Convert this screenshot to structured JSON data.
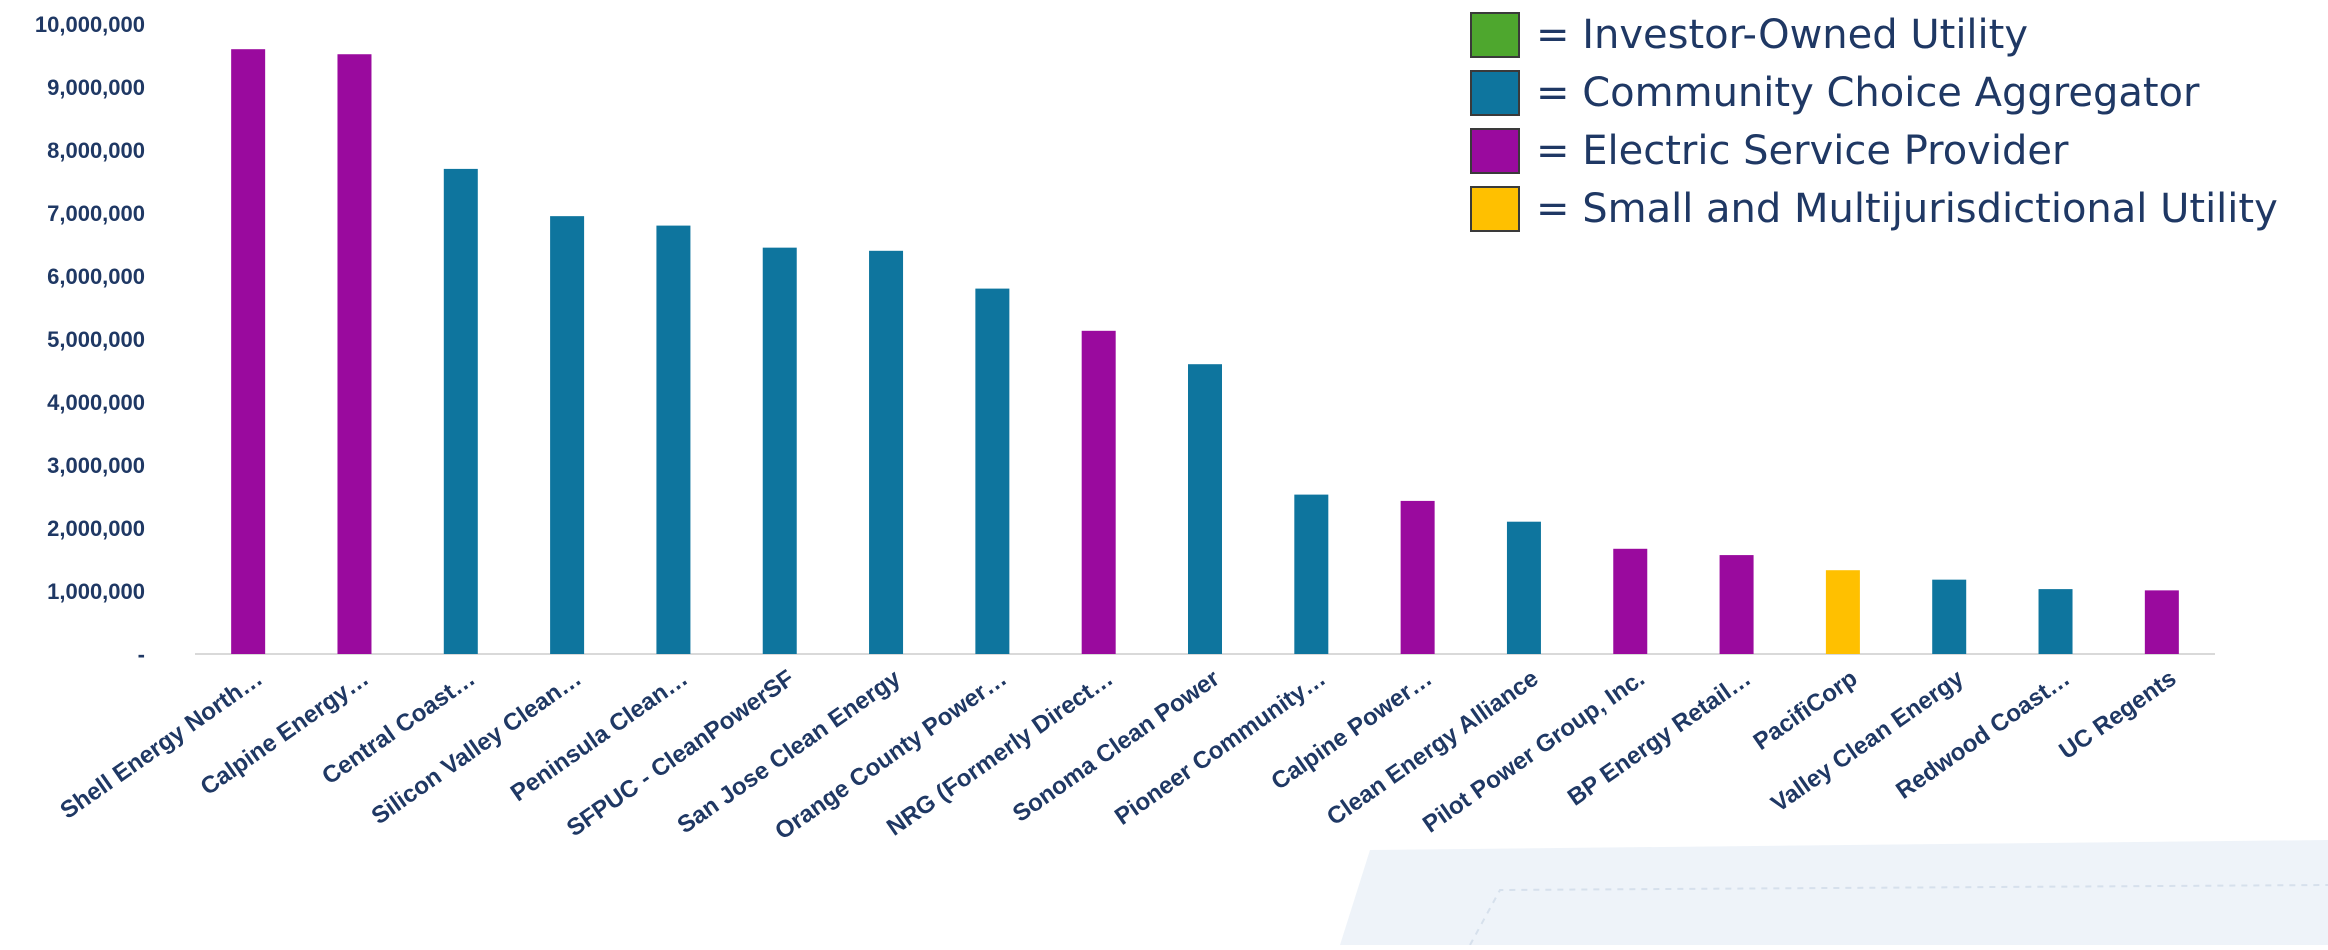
{
  "chart_data": {
    "type": "bar",
    "title": "",
    "xlabel": "",
    "ylabel": "",
    "ylim": [
      0,
      10000000
    ],
    "y_ticks": [
      "-",
      "1,000,000",
      "2,000,000",
      "3,000,000",
      "4,000,000",
      "5,000,000",
      "6,000,000",
      "7,000,000",
      "8,000,000",
      "9,000,000",
      "10,000,000"
    ],
    "legend_placement": "top-right",
    "grid": false,
    "categories": [
      "Shell Energy North…",
      "Calpine Energy…",
      "Central Coast…",
      "Silicon Valley Clean…",
      "Peninsula Clean…",
      "SFPUC - CleanPowerSF",
      "San Jose Clean Energy",
      "Orange County Power…",
      "NRG (Formerly Direct…",
      "Sonoma Clean Power",
      "Pioneer Community…",
      "Calpine Power…",
      "Clean Energy Alliance",
      "Pilot Power Group, Inc.",
      "BP Energy Retail…",
      "PacifiCorp",
      "Valley Clean Energy",
      "Redwood Coast…",
      "UC Regents"
    ],
    "values": [
      9600000,
      9520000,
      7700000,
      6950000,
      6800000,
      6450000,
      6400000,
      5800000,
      5130000,
      4600000,
      2530000,
      2430000,
      2100000,
      1670000,
      1570000,
      1330000,
      1180000,
      1030000,
      1010000
    ],
    "bar_types": [
      "esp",
      "esp",
      "cca",
      "cca",
      "cca",
      "cca",
      "cca",
      "cca",
      "esp",
      "cca",
      "cca",
      "esp",
      "cca",
      "esp",
      "esp",
      "smju",
      "cca",
      "cca",
      "esp"
    ],
    "legend": [
      {
        "key": "iou",
        "label": "= Investor-Owned Utility",
        "color": "#4ea72e"
      },
      {
        "key": "cca",
        "label": "= Community Choice Aggregator",
        "color": "#0e759e"
      },
      {
        "key": "esp",
        "label": "= Electric Service Provider",
        "color": "#9a0a9e"
      },
      {
        "key": "smju",
        "label": "= Small and Multijurisdictional Utility",
        "color": "#ffc000"
      }
    ]
  }
}
